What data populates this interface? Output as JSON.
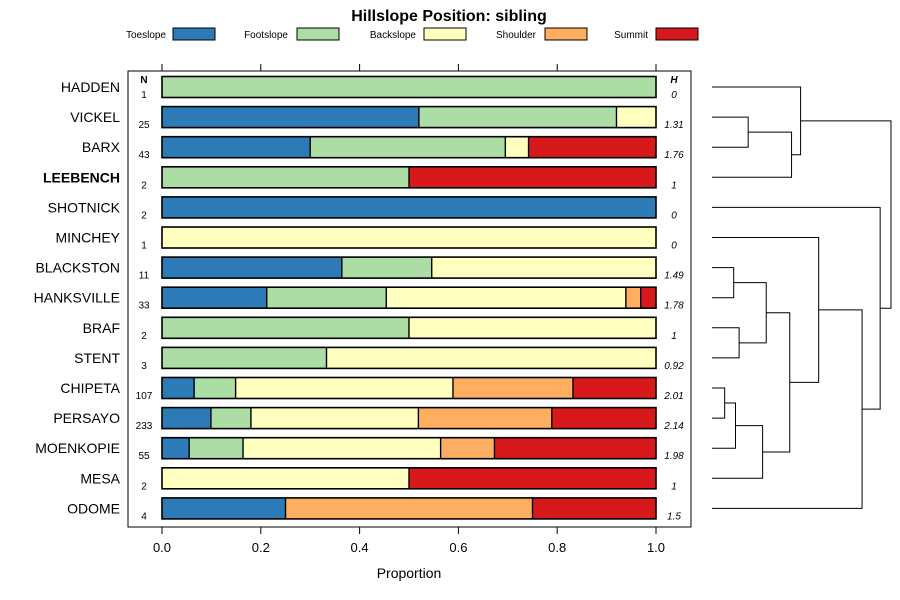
{
  "chart_data": {
    "type": "bar",
    "orientation": "horizontal",
    "stacked": true,
    "title": "Hillslope Position: sibling",
    "xlabel": "Proportion",
    "ylabel": "",
    "xlim": [
      0,
      1
    ],
    "xticks": [
      "0.0",
      "0.2",
      "0.4",
      "0.6",
      "0.8",
      "1.0"
    ],
    "legend_position": "top",
    "n_header": "N",
    "h_header": "H",
    "series": [
      {
        "name": "Toeslope",
        "color": "#2c7bb6"
      },
      {
        "name": "Footslope",
        "color": "#abdda4"
      },
      {
        "name": "Backslope",
        "color": "#ffffbf"
      },
      {
        "name": "Shoulder",
        "color": "#fdae61"
      },
      {
        "name": "Summit",
        "color": "#d7191c"
      }
    ],
    "rows": [
      {
        "label": "HADDEN",
        "n": "1",
        "h": "0",
        "bold": false,
        "values": [
          0,
          1,
          0,
          0,
          0
        ]
      },
      {
        "label": "VICKEL",
        "n": "25",
        "h": "1.31",
        "bold": false,
        "values": [
          0.52,
          0.4,
          0.08,
          0,
          0
        ]
      },
      {
        "label": "BARX",
        "n": "43",
        "h": "1.76",
        "bold": false,
        "values": [
          0.3,
          0.395,
          0.047,
          0,
          0.258
        ]
      },
      {
        "label": "LEEBENCH",
        "n": "2",
        "h": "1",
        "bold": true,
        "values": [
          0,
          0.5,
          0,
          0,
          0.5
        ]
      },
      {
        "label": "SHOTNICK",
        "n": "2",
        "h": "0",
        "bold": false,
        "values": [
          1,
          0,
          0,
          0,
          0
        ]
      },
      {
        "label": "MINCHEY",
        "n": "1",
        "h": "0",
        "bold": false,
        "values": [
          0,
          0,
          1,
          0,
          0
        ]
      },
      {
        "label": "BLACKSTON",
        "n": "11",
        "h": "1.49",
        "bold": false,
        "values": [
          0.364,
          0.182,
          0.454,
          0,
          0
        ]
      },
      {
        "label": "HANKSVILLE",
        "n": "33",
        "h": "1.78",
        "bold": false,
        "values": [
          0.212,
          0.242,
          0.485,
          0.03,
          0.031
        ]
      },
      {
        "label": "BRAF",
        "n": "2",
        "h": "1",
        "bold": false,
        "values": [
          0,
          0.5,
          0.5,
          0,
          0
        ]
      },
      {
        "label": "STENT",
        "n": "3",
        "h": "0.92",
        "bold": false,
        "values": [
          0,
          0.333,
          0.667,
          0,
          0
        ]
      },
      {
        "label": "CHIPETA",
        "n": "107",
        "h": "2.01",
        "bold": false,
        "values": [
          0.065,
          0.084,
          0.44,
          0.243,
          0.168
        ]
      },
      {
        "label": "PERSAYO",
        "n": "233",
        "h": "2.14",
        "bold": false,
        "values": [
          0.099,
          0.081,
          0.339,
          0.27,
          0.211
        ]
      },
      {
        "label": "MOENKOPIE",
        "n": "55",
        "h": "1.98",
        "bold": false,
        "values": [
          0.055,
          0.109,
          0.4,
          0.109,
          0.327
        ]
      },
      {
        "label": "MESA",
        "n": "2",
        "h": "1",
        "bold": false,
        "values": [
          0,
          0,
          0.5,
          0,
          0.5
        ]
      },
      {
        "label": "ODOME",
        "n": "4",
        "h": "1.5",
        "bold": false,
        "values": [
          0.25,
          0,
          0,
          0.5,
          0.25
        ]
      }
    ],
    "dendrogram": {
      "leaves": [
        "HADDEN",
        "VICKEL",
        "BARX",
        "LEEBENCH",
        "SHOTNICK",
        "MINCHEY",
        "BLACKSTON",
        "HANKSVILLE",
        "BRAF",
        "STENT",
        "CHIPETA",
        "PERSAYO",
        "MOENKOPIE",
        "MESA",
        "ODOME"
      ],
      "merges": [
        {
          "left": "L:1",
          "right": "L:2",
          "height": 0.2
        },
        {
          "left": "M:0",
          "right": "L:3",
          "height": 0.44
        },
        {
          "left": "L:0",
          "right": "M:1",
          "height": 0.49
        },
        {
          "left": "L:6",
          "right": "L:7",
          "height": 0.12
        },
        {
          "left": "L:8",
          "right": "L:9",
          "height": 0.15
        },
        {
          "left": "M:3",
          "right": "M:4",
          "height": 0.3
        },
        {
          "left": "L:10",
          "right": "L:11",
          "height": 0.07
        },
        {
          "left": "M:6",
          "right": "L:12",
          "height": 0.13
        },
        {
          "left": "M:7",
          "right": "L:13",
          "height": 0.28
        },
        {
          "left": "M:5",
          "right": "M:8",
          "height": 0.43
        },
        {
          "left": "L:5",
          "right": "M:9",
          "height": 0.59
        },
        {
          "left": "M:10",
          "right": "L:14",
          "height": 0.83
        },
        {
          "left": "L:4",
          "right": "M:11",
          "height": 0.93
        },
        {
          "left": "M:2",
          "right": "M:12",
          "height": 0.99
        }
      ]
    }
  }
}
